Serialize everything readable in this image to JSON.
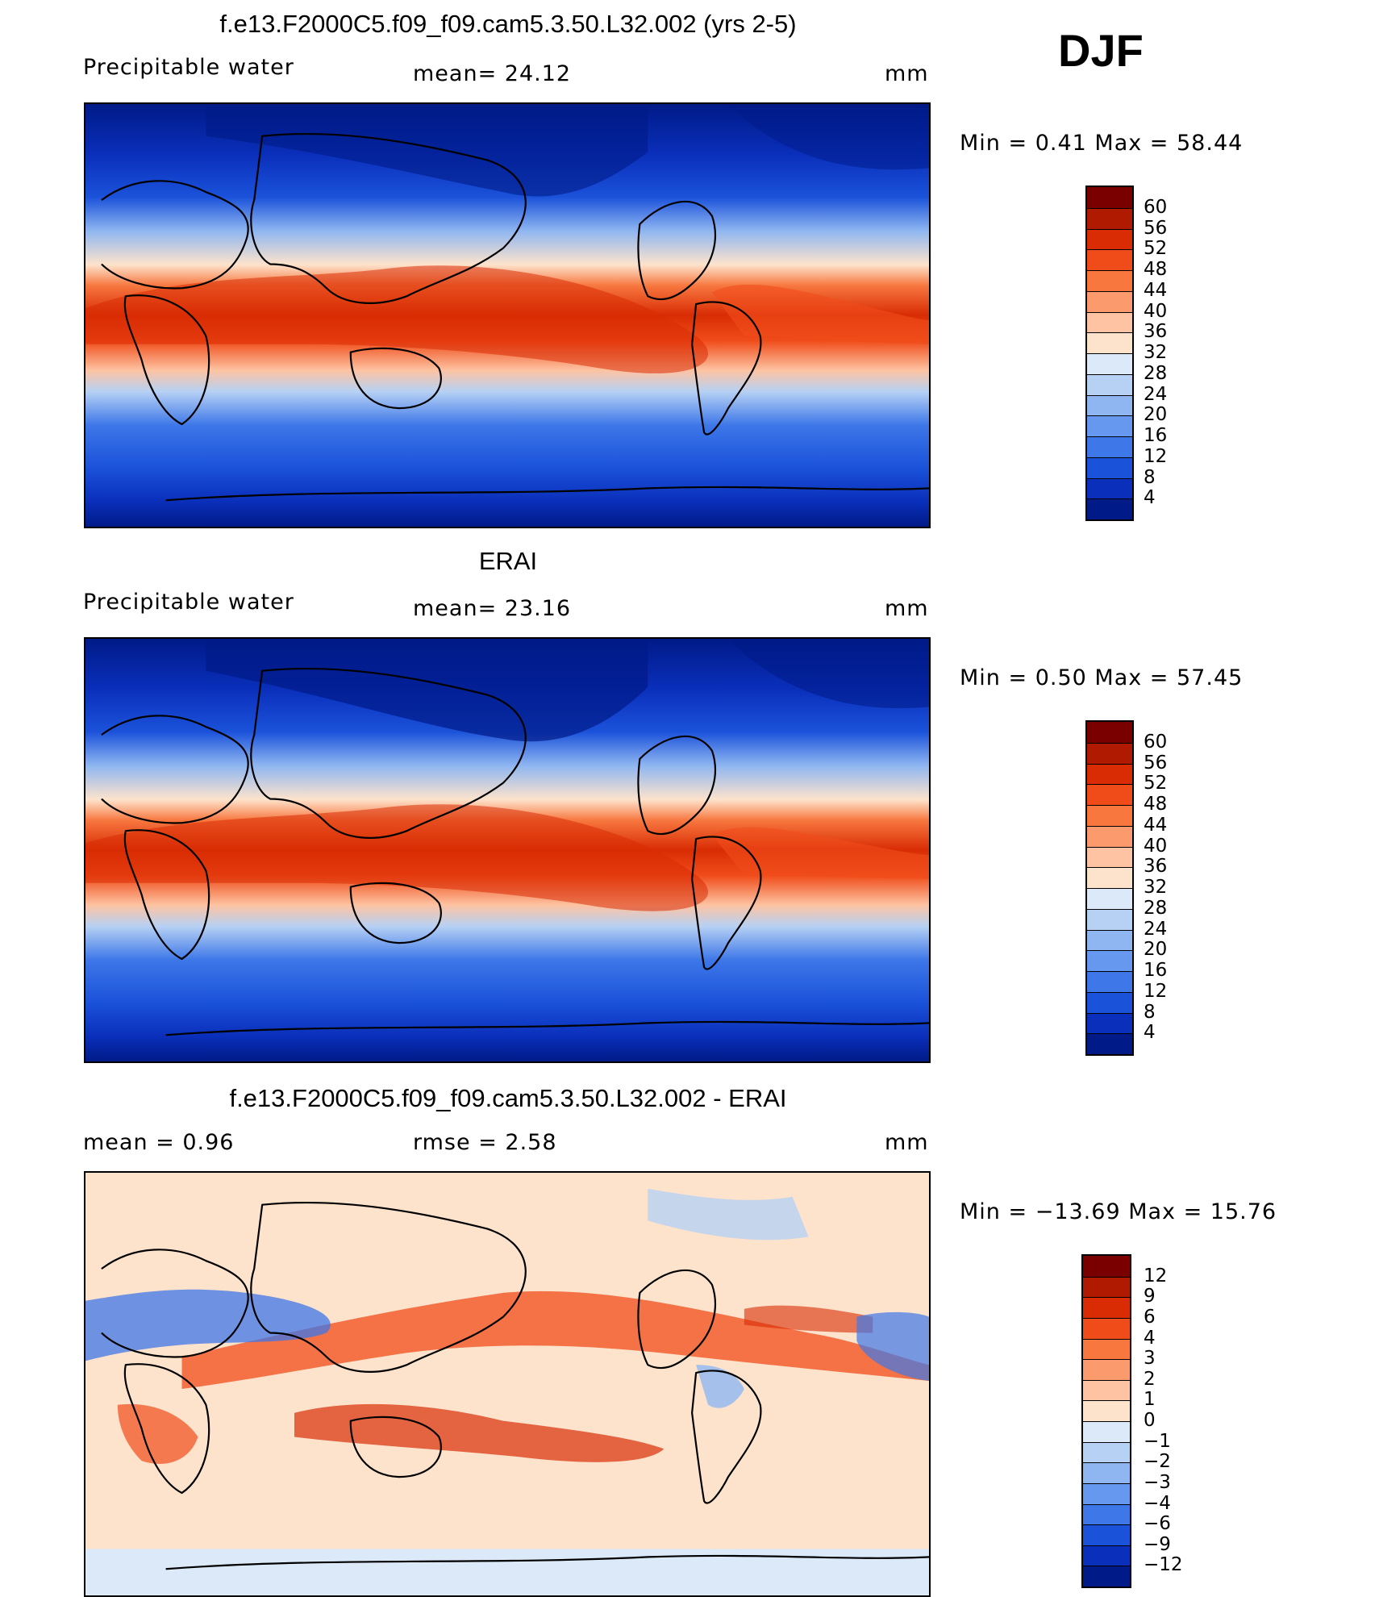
{
  "season": "DJF",
  "panels": [
    {
      "id": "model",
      "title": "f.e13.F2000C5.f09_f09.cam5.3.50.L32.002 (yrs 2-5)",
      "variable": "Precipitable water",
      "stat1": "mean=   24.12",
      "stat2": "",
      "units": "mm",
      "minmax": "Min  =     0.41  Max  =    58.44",
      "colorbar": {
        "labels": [
          "60",
          "56",
          "52",
          "48",
          "44",
          "40",
          "36",
          "32",
          "28",
          "24",
          "20",
          "16",
          "12",
          "8",
          "4"
        ],
        "colors": [
          "#7a0000",
          "#b01a00",
          "#d92c04",
          "#f04c1a",
          "#f7773f",
          "#fb9a6c",
          "#fdc3a2",
          "#fde3cc",
          "#dbe9f8",
          "#b7d1f4",
          "#8fb6f1",
          "#6598ee",
          "#3d77e8",
          "#1b52da",
          "#0a2fbb",
          "#001a87"
        ]
      }
    },
    {
      "id": "obs",
      "title": "ERAI",
      "variable": "Precipitable water",
      "stat1": "mean=   23.16",
      "stat2": "",
      "units": "mm",
      "minmax": "Min  =     0.50  Max  =    57.45",
      "colorbar": {
        "labels": [
          "60",
          "56",
          "52",
          "48",
          "44",
          "40",
          "36",
          "32",
          "28",
          "24",
          "20",
          "16",
          "12",
          "8",
          "4"
        ],
        "colors": [
          "#7a0000",
          "#b01a00",
          "#d92c04",
          "#f04c1a",
          "#f7773f",
          "#fb9a6c",
          "#fdc3a2",
          "#fde3cc",
          "#dbe9f8",
          "#b7d1f4",
          "#8fb6f1",
          "#6598ee",
          "#3d77e8",
          "#1b52da",
          "#0a2fbb",
          "#001a87"
        ]
      }
    },
    {
      "id": "diff",
      "title": "f.e13.F2000C5.f09_f09.cam5.3.50.L32.002 - ERAI",
      "variable": "mean =     0.96",
      "stat1": "rmse  =     2.58",
      "stat2": "",
      "units": "mm",
      "minmax": "Min  =  −13.69  Max  =    15.76",
      "colorbar": {
        "labels": [
          "12",
          "9",
          "6",
          "4",
          "3",
          "2",
          "1",
          "0",
          "−1",
          "−2",
          "−3",
          "−4",
          "−6",
          "−9",
          "−12"
        ],
        "colors": [
          "#7a0000",
          "#b01a00",
          "#d92c04",
          "#f04c1a",
          "#f7773f",
          "#fb9a6c",
          "#fdc3a2",
          "#fde3cc",
          "#dbe9f8",
          "#b7d1f4",
          "#8fb6f1",
          "#6598ee",
          "#3d77e8",
          "#1b52da",
          "#0a2fbb",
          "#001a87"
        ]
      }
    }
  ],
  "colors": {
    "deep_blue": "#001a87",
    "mid_blue": "#1b52da",
    "light_blue": "#b7d1f4",
    "cream": "#fde3cc",
    "orange": "#f7773f",
    "red": "#d92c04",
    "dark_red": "#7a0000"
  }
}
